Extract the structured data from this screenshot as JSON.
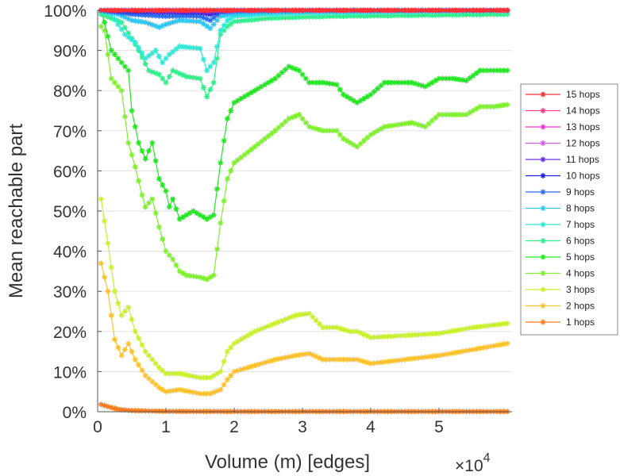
{
  "chart_data": {
    "type": "line",
    "title": "",
    "xlabel": "Volume (m) [edges]",
    "ylabel": "Mean reachable part",
    "x_multiplier_label": "×10",
    "x_multiplier_exp": "4",
    "xlim": [
      0,
      6.05
    ],
    "ylim": [
      0,
      100
    ],
    "xticks": [
      0,
      1,
      2,
      3,
      4,
      5
    ],
    "xtick_labels": [
      "0",
      "1",
      "2",
      "3",
      "4",
      "5"
    ],
    "yticks": [
      0,
      10,
      20,
      30,
      40,
      50,
      60,
      70,
      80,
      90,
      100
    ],
    "ytick_labels": [
      "0%",
      "10%",
      "20%",
      "30%",
      "40%",
      "50%",
      "60%",
      "70%",
      "80%",
      "90%",
      "100%"
    ],
    "grid": "horizontal",
    "legend_position": "right",
    "series": [
      {
        "name": "15 hops",
        "color": "#ff3030",
        "x": [
          0.05,
          1,
          2,
          3,
          4,
          5,
          6.0
        ],
        "y": [
          100,
          100,
          100,
          100,
          100,
          100,
          100
        ]
      },
      {
        "name": "14 hops",
        "color": "#ff3d8a",
        "x": [
          0.05,
          1,
          2,
          3,
          4,
          5,
          6.0
        ],
        "y": [
          100,
          100,
          100,
          100,
          100,
          100,
          100
        ]
      },
      {
        "name": "13 hops",
        "color": "#ff30d6",
        "x": [
          0.05,
          1,
          2,
          3,
          4,
          5,
          6.0
        ],
        "y": [
          100,
          100,
          100,
          100,
          100,
          100,
          100
        ]
      },
      {
        "name": "12 hops",
        "color": "#d45cf0",
        "x": [
          0.05,
          1,
          2,
          3,
          4,
          5,
          6.0
        ],
        "y": [
          100,
          100,
          100,
          100,
          100,
          100,
          100
        ]
      },
      {
        "name": "11 hops",
        "color": "#6a2ee8",
        "x": [
          0.05,
          0.5,
          1,
          1.5,
          1.65,
          1.8,
          2,
          3,
          4,
          5,
          6.0
        ],
        "y": [
          100,
          100,
          99.8,
          99.7,
          99.5,
          99.9,
          100,
          100,
          100,
          100,
          100
        ]
      },
      {
        "name": "10 hops",
        "color": "#1f1fe0",
        "x": [
          0.05,
          0.5,
          1,
          1.5,
          1.65,
          1.8,
          2,
          3,
          4,
          5,
          6.0
        ],
        "y": [
          100,
          99.7,
          99.5,
          99.4,
          99,
          99.8,
          100,
          100,
          100,
          100,
          100
        ]
      },
      {
        "name": "9 hops",
        "color": "#2a6cf0",
        "x": [
          0.05,
          0.3,
          0.5,
          0.7,
          1,
          1.3,
          1.5,
          1.65,
          1.8,
          2,
          3,
          4,
          5,
          6.0
        ],
        "y": [
          100,
          99.5,
          99,
          98.8,
          98.5,
          98.6,
          98.5,
          97.5,
          99.5,
          99.8,
          100,
          100,
          100,
          100
        ]
      },
      {
        "name": "8 hops",
        "color": "#2ec6f5",
        "x": [
          0.05,
          0.3,
          0.5,
          0.7,
          0.9,
          1,
          1.2,
          1.5,
          1.65,
          1.8,
          2,
          2.5,
          3,
          4,
          5,
          6.0
        ],
        "y": [
          100,
          99,
          97.5,
          97,
          95.8,
          96.5,
          97.5,
          97.2,
          95.5,
          98.5,
          99.2,
          99.5,
          99.7,
          99.8,
          99.9,
          100
        ]
      },
      {
        "name": "7 hops",
        "color": "#2ee8d8",
        "x": [
          0.05,
          0.2,
          0.4,
          0.55,
          0.7,
          0.85,
          0.95,
          1.05,
          1.2,
          1.5,
          1.6,
          1.7,
          1.8,
          1.9,
          2,
          2.5,
          3,
          4,
          5,
          6.0
        ],
        "y": [
          99.5,
          99,
          94,
          92,
          88,
          90,
          87,
          89,
          91,
          90.5,
          85,
          87,
          95,
          97.5,
          98.5,
          99,
          99.3,
          99.5,
          99.7,
          99.8
        ]
      },
      {
        "name": "6 hops",
        "color": "#2ef08a",
        "x": [
          0.05,
          0.2,
          0.35,
          0.5,
          0.6,
          0.75,
          0.9,
          1.0,
          1.1,
          1.3,
          1.5,
          1.6,
          1.7,
          1.8,
          1.9,
          2,
          2.5,
          3,
          3.5,
          4,
          5,
          6.0
        ],
        "y": [
          99,
          98,
          97,
          93,
          90,
          85,
          84,
          82,
          85,
          83.5,
          83,
          78.5,
          82,
          94,
          96,
          97.2,
          98,
          98.3,
          98.5,
          98.6,
          98.8,
          99
        ]
      },
      {
        "name": "5 hops",
        "color": "#22e622",
        "x": [
          0.05,
          0.1,
          0.2,
          0.3,
          0.45,
          0.5,
          0.6,
          0.7,
          0.8,
          0.9,
          1.0,
          1.05,
          1.1,
          1.2,
          1.4,
          1.5,
          1.6,
          1.7,
          1.8,
          1.9,
          2,
          2.3,
          2.6,
          2.8,
          2.95,
          3.1,
          3.3,
          3.5,
          3.6,
          3.8,
          4.0,
          4.2,
          4.6,
          4.8,
          5.0,
          5.2,
          5.4,
          5.6,
          5.8,
          6.0
        ],
        "y": [
          99.5,
          97,
          90,
          88,
          85,
          75,
          67,
          63,
          67,
          58,
          55,
          51,
          53,
          48,
          50,
          49,
          48,
          49,
          62,
          73,
          77,
          80,
          83,
          86,
          85,
          82,
          82,
          81.5,
          79,
          77,
          79,
          82,
          82,
          81,
          83,
          83,
          82.5,
          85,
          85,
          85
        ]
      },
      {
        "name": "4 hops",
        "color": "#7ef02e",
        "x": [
          0.05,
          0.1,
          0.2,
          0.35,
          0.45,
          0.55,
          0.65,
          0.7,
          0.8,
          0.9,
          1.0,
          1.1,
          1.2,
          1.3,
          1.5,
          1.6,
          1.7,
          1.8,
          1.9,
          2,
          2.3,
          2.6,
          2.8,
          2.95,
          3.1,
          3.3,
          3.5,
          3.6,
          3.8,
          4.0,
          4.2,
          4.6,
          4.8,
          5.0,
          5.2,
          5.4,
          5.6,
          5.8,
          6.0
        ],
        "y": [
          96,
          95,
          83,
          80,
          67,
          61,
          54,
          51,
          53,
          46,
          40,
          38,
          35,
          34,
          33.5,
          33,
          34,
          47,
          58,
          62,
          66,
          70,
          73,
          74,
          71,
          70,
          70,
          68,
          66,
          69,
          71,
          72,
          71,
          74,
          74,
          74,
          76,
          76,
          76.5
        ]
      },
      {
        "name": "3 hops",
        "color": "#c8f02e",
        "x": [
          0.05,
          0.15,
          0.25,
          0.35,
          0.45,
          0.55,
          0.7,
          0.9,
          1.0,
          1.2,
          1.5,
          1.65,
          1.8,
          1.9,
          2,
          2.3,
          2.6,
          2.9,
          3.1,
          3.3,
          3.5,
          3.7,
          3.8,
          4.0,
          4.5,
          5.0,
          5.5,
          6.0
        ],
        "y": [
          53,
          42,
          30,
          24,
          26,
          20,
          15,
          11,
          9.5,
          9.5,
          8.5,
          8.5,
          10,
          15,
          17,
          20,
          22,
          24,
          24.5,
          21,
          21,
          20,
          20,
          18.5,
          19,
          19.5,
          21,
          22
        ]
      },
      {
        "name": "2 hops",
        "color": "#ffc02e",
        "x": [
          0.05,
          0.15,
          0.25,
          0.35,
          0.45,
          0.55,
          0.7,
          0.9,
          1.0,
          1.2,
          1.5,
          1.65,
          1.8,
          1.9,
          2,
          2.3,
          2.6,
          2.9,
          3.1,
          3.3,
          3.5,
          3.7,
          3.8,
          4.0,
          4.5,
          5.0,
          5.5,
          6.0
        ],
        "y": [
          37,
          30,
          18,
          14,
          17,
          13,
          9,
          6,
          5,
          5.5,
          4.5,
          4.5,
          5.5,
          8,
          10,
          11.5,
          13,
          14,
          14.5,
          13,
          13,
          13,
          13,
          12,
          13,
          14,
          15.5,
          17
        ]
      },
      {
        "name": "1 hops",
        "color": "#ff7a1a",
        "x": [
          0.05,
          0.15,
          0.3,
          0.5,
          1,
          2,
          3,
          4,
          5,
          6.0
        ],
        "y": [
          1.8,
          1.3,
          0.6,
          0.3,
          0.1,
          0.05,
          0.05,
          0.05,
          0.05,
          0.05
        ]
      }
    ]
  }
}
